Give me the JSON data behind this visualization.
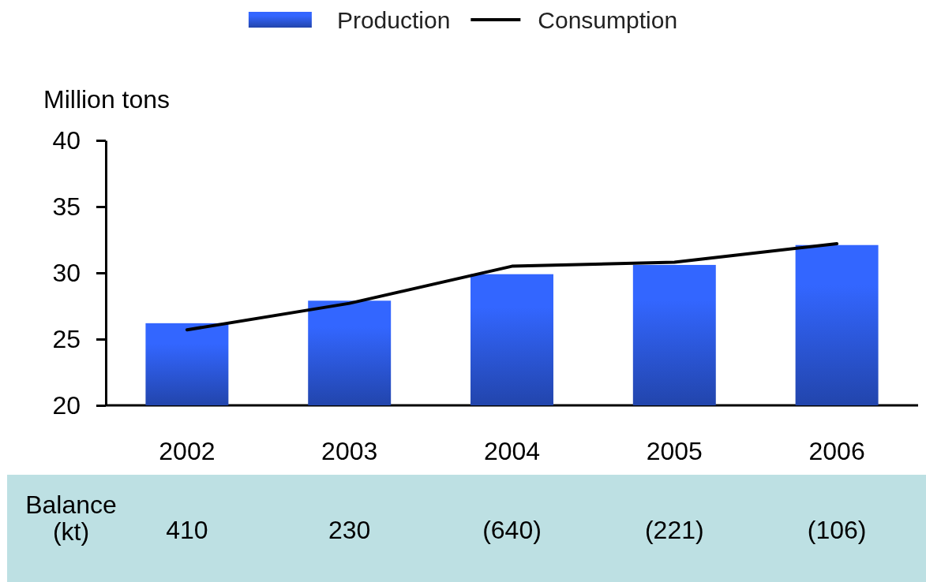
{
  "chart_data": {
    "type": "bar",
    "categories": [
      "2002",
      "2003",
      "2004",
      "2005",
      "2006"
    ],
    "series": [
      {
        "name": "Production",
        "color": "#3366ff",
        "values": [
          26.2,
          27.9,
          29.9,
          30.6,
          32.1
        ]
      },
      {
        "name": "Consumption",
        "type": "line",
        "color": "#000000",
        "values": [
          25.7,
          27.7,
          30.5,
          30.8,
          32.2
        ]
      }
    ],
    "ylabel": "Million tons",
    "ylim": [
      20,
      40
    ],
    "yticks": [
      20,
      25,
      30,
      35,
      40
    ],
    "legend": "top",
    "annotations": [
      "Balance (kt)",
      "410",
      "230",
      "(640)",
      "(221)",
      "(106)"
    ]
  }
}
